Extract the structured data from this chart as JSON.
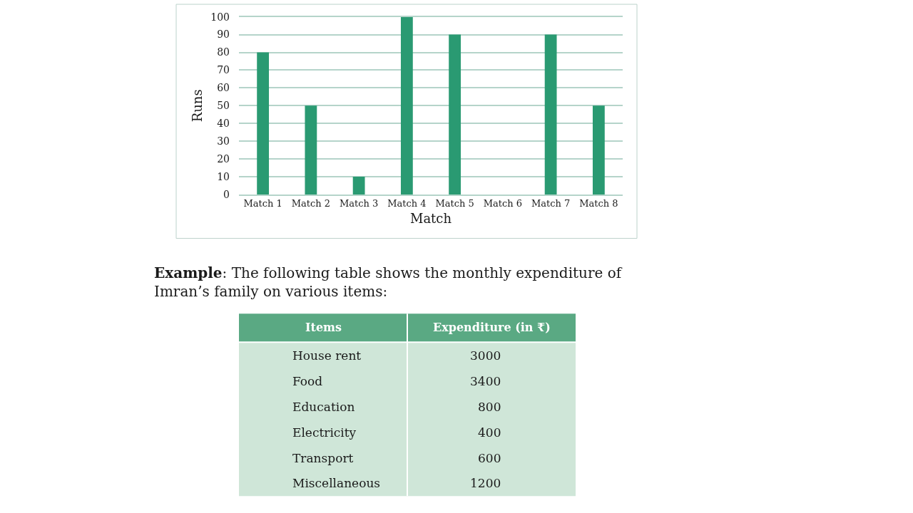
{
  "chart_data": [
    {
      "type": "bar",
      "categories": [
        "Match 1",
        "Match 2",
        "Match 3",
        "Match 4",
        "Match 5",
        "Match 6",
        "Match 7",
        "Match 8"
      ],
      "values": [
        80,
        50,
        10,
        100,
        90,
        0,
        90,
        50
      ],
      "color": "#2a9a72",
      "xlabel": "Match",
      "ylabel": "Runs",
      "ylim": [
        0,
        100
      ],
      "yticks": [
        0,
        10,
        20,
        30,
        40,
        50,
        60,
        70,
        80,
        90,
        100
      ],
      "grid": "y"
    },
    {
      "type": "other",
      "title": "Example: The following table shows the monthly expenditure of Imran’s family on various items:",
      "xlabel": "Items",
      "ylabel": "Expenditure (in ₹)",
      "categories": [
        "House rent",
        "Food",
        "Education",
        "Electricity",
        "Transport",
        "Miscellaneous"
      ],
      "values": [
        3000,
        3400,
        800,
        400,
        600,
        1200
      ],
      "data_labels": true
    }
  ]
}
